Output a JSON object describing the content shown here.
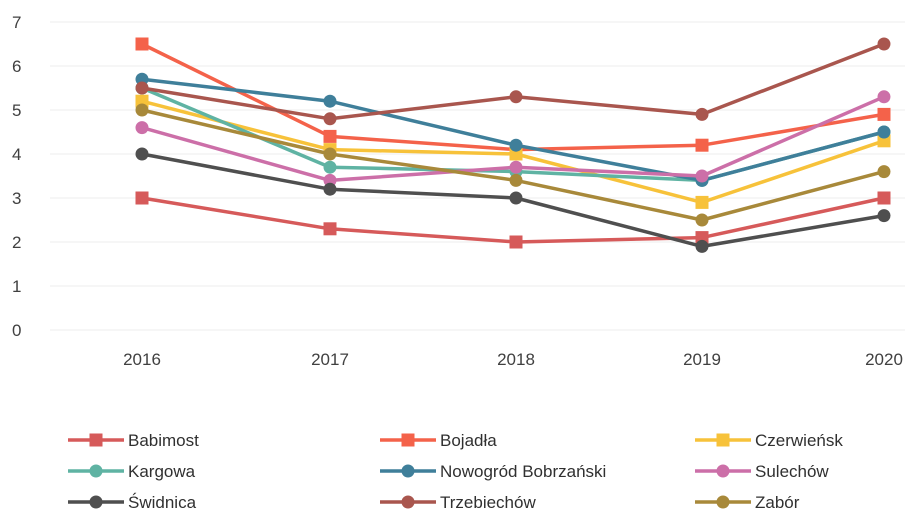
{
  "chart_data": {
    "type": "line",
    "title": "",
    "xlabel": "",
    "ylabel": "",
    "categories": [
      "2016",
      "2017",
      "2018",
      "2019",
      "2020"
    ],
    "ylim": [
      0,
      7
    ],
    "yticks": [
      "0",
      "1",
      "2",
      "3",
      "4",
      "5",
      "6",
      "7"
    ],
    "grid": true,
    "legend_position": "bottom",
    "series": [
      {
        "name": "Babimost",
        "color": "#d65a5a",
        "marker": "square",
        "values": [
          3.0,
          2.3,
          2.0,
          2.1,
          3.0
        ]
      },
      {
        "name": "Bojadła",
        "color": "#f4624a",
        "marker": "square",
        "values": [
          6.5,
          4.4,
          4.1,
          4.2,
          4.9
        ]
      },
      {
        "name": "Czerwieńsk",
        "color": "#f7c23a",
        "marker": "square",
        "values": [
          5.2,
          4.1,
          4.0,
          2.9,
          4.3
        ]
      },
      {
        "name": "Kargowa",
        "color": "#5fb3a3",
        "marker": "circle",
        "values": [
          5.5,
          3.7,
          3.6,
          3.4,
          4.5
        ]
      },
      {
        "name": "Nowogród Bobrzański",
        "color": "#3f7f9a",
        "marker": "circle",
        "values": [
          5.7,
          5.2,
          4.2,
          3.4,
          4.5
        ]
      },
      {
        "name": "Sulechów",
        "color": "#cc6fa8",
        "marker": "circle",
        "values": [
          4.6,
          3.4,
          3.7,
          3.5,
          5.3
        ]
      },
      {
        "name": "Świdnica",
        "color": "#4f4f4f",
        "marker": "circle",
        "values": [
          4.0,
          3.2,
          3.0,
          1.9,
          2.6
        ]
      },
      {
        "name": "Trzebiechów",
        "color": "#a9564e",
        "marker": "circle",
        "values": [
          5.5,
          4.8,
          5.3,
          4.9,
          6.5
        ]
      },
      {
        "name": "Zabór",
        "color": "#a8893a",
        "marker": "circle",
        "values": [
          5.0,
          4.0,
          3.4,
          2.5,
          3.6
        ]
      }
    ]
  }
}
